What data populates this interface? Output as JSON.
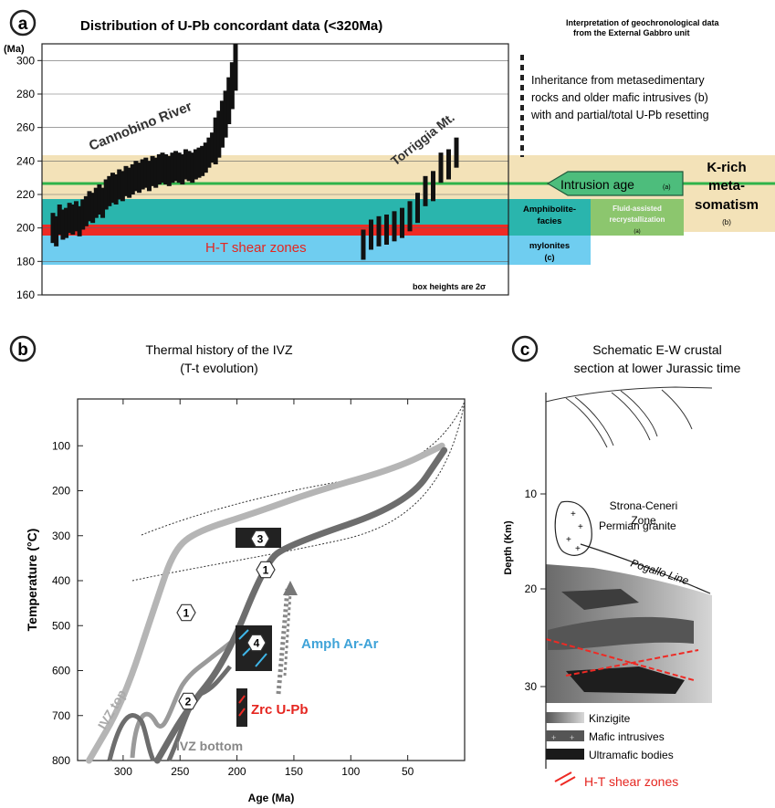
{
  "panel_a": {
    "letter": "a",
    "title": "Distribution of U-Pb concordant data (<320Ma)",
    "y_unit": "(Ma)",
    "y_ticks": [
      300,
      280,
      260,
      240,
      220,
      200,
      180,
      160
    ],
    "label_cannobino": "Cannobino River",
    "label_torriggia": "Torriggia Mt.",
    "label_shear": "H-T shear zones",
    "box_note": "box heights are 2σ",
    "interpretation_title": [
      "Interpretation of geochronological data",
      "from the External Gabbro unit"
    ],
    "inheritance": [
      "Inheritance from metasedimentary",
      "rocks and older mafic intrusives (b)",
      "with and partial/total U-Pb resetting"
    ],
    "intrusion_age": "Intrusion age",
    "intrusion_ref": "(a)",
    "k_rich": [
      "K-rich",
      "meta-",
      "somatism"
    ],
    "k_rich_ref": "(b)",
    "amphibolite": [
      "Amphibolite-",
      "facies",
      "mylonites",
      "(c)"
    ],
    "fluid": [
      "Fluid-assisted",
      "recrystallization",
      "(a)"
    ],
    "colors": {
      "beige": "#f3e2b8",
      "teal": "#2ab5ad",
      "red": "#ee2a24",
      "lightblue": "#6fcdf0",
      "green": "#4dbd7c",
      "lightgreen": "#8cc66e"
    }
  },
  "panel_b": {
    "letter": "b",
    "title": [
      "Thermal history of the IVZ",
      "(T-t evolution)"
    ],
    "ylabel": "Temperature (°C)",
    "xlabel": "Age (Ma)",
    "y_ticks": [
      100,
      200,
      300,
      400,
      500,
      600,
      700,
      800
    ],
    "x_ticks": [
      300,
      250,
      200,
      150,
      100,
      50
    ],
    "label_top": "IVZ top",
    "label_bottom": "IVZ bottom",
    "label_amph": "Amph Ar-Ar",
    "label_zrc": "Zrc U-Pb",
    "markers": [
      "1",
      "1",
      "2",
      "3",
      "4"
    ]
  },
  "panel_c": {
    "letter": "c",
    "title": [
      "Schematic E-W crustal",
      "section  at lower Jurassic time"
    ],
    "ylabel": "Depth (Km)",
    "y_ticks": [
      10,
      20,
      30
    ],
    "zone_label": [
      "Strona-Ceneri",
      "Zone"
    ],
    "granite_label": "Permian granite",
    "pogallo_label": "Pogallo Line",
    "legend": [
      "Kinzigite",
      "Mafic intrusives",
      "Ultramafic bodies",
      "H-T shear zones"
    ]
  },
  "chart_data": [
    {
      "type": "scatter",
      "title": "Distribution of U-Pb concordant data (<320Ma)",
      "ylabel": "(Ma)",
      "ylim": [
        160,
        310
      ],
      "series": [
        {
          "name": "Cannobino River",
          "x": [
            1,
            2,
            3,
            4,
            5,
            6,
            7,
            8,
            9,
            10,
            11,
            12,
            13,
            14,
            15,
            16,
            17,
            18,
            19,
            20,
            21,
            22,
            23,
            24,
            25,
            26,
            27,
            28,
            29,
            30,
            31,
            32,
            33,
            34,
            35,
            36,
            37,
            38,
            39,
            40,
            41,
            42,
            43,
            44,
            45,
            46,
            47,
            48,
            49,
            50,
            51,
            52,
            53,
            54,
            55,
            56
          ],
          "values": [
            200,
            198,
            205,
            202,
            203,
            206,
            205,
            207,
            204,
            208,
            210,
            213,
            212,
            215,
            217,
            215,
            220,
            222,
            224,
            223,
            226,
            225,
            228,
            227,
            229,
            231,
            230,
            232,
            233,
            231,
            234,
            233,
            235,
            236,
            235,
            234,
            236,
            237,
            236,
            235,
            238,
            237,
            236,
            238,
            239,
            240,
            242,
            245,
            248,
            252,
            256,
            262,
            268,
            276,
            285,
            296
          ]
        },
        {
          "name": "Torriggia Mt.",
          "x": [
            60,
            61,
            62,
            63,
            64,
            65,
            66,
            67,
            68,
            69,
            70,
            71,
            72
          ],
          "values": [
            190,
            196,
            198,
            199,
            201,
            203,
            207,
            212,
            222,
            225,
            236,
            238,
            245
          ]
        }
      ]
    },
    {
      "type": "line",
      "title": "Thermal history of the IVZ",
      "xlabel": "Age (Ma)",
      "ylabel": "Temperature (°C)",
      "xlim": [
        340,
        0
      ],
      "ylim": [
        800,
        0
      ],
      "series": [
        {
          "name": "IVZ top",
          "x": [
            330,
            300,
            270,
            255,
            235,
            185,
            130,
            60,
            20
          ],
          "values": [
            800,
            670,
            440,
            330,
            290,
            250,
            200,
            150,
            100
          ]
        },
        {
          "name": "IVZ bottom",
          "x": [
            270,
            245,
            210,
            175,
            155,
            50,
            18
          ],
          "values": [
            800,
            690,
            580,
            360,
            320,
            230,
            110
          ]
        }
      ]
    }
  ]
}
